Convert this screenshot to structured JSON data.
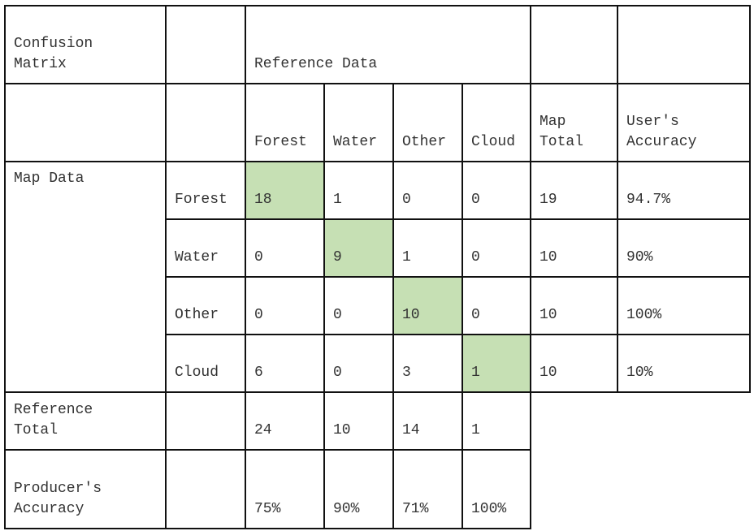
{
  "header": {
    "title": "Confusion\nMatrix",
    "reference_label": "Reference Data",
    "columns": [
      "Forest",
      "Water",
      "Other",
      "Cloud"
    ],
    "map_total_label": "Map\nTotal",
    "users_accuracy_label": "User's\nAccuracy"
  },
  "map_data_label": "Map Data",
  "rows": [
    {
      "label": "Forest",
      "values": [
        "18",
        "1",
        "0",
        "0"
      ],
      "map_total": "19",
      "users_accuracy": "94.7%"
    },
    {
      "label": "Water",
      "values": [
        "0",
        "9",
        "1",
        "0"
      ],
      "map_total": "10",
      "users_accuracy": "90%"
    },
    {
      "label": "Other",
      "values": [
        "0",
        "0",
        "10",
        "0"
      ],
      "map_total": "10",
      "users_accuracy": "100%"
    },
    {
      "label": "Cloud",
      "values": [
        "6",
        "0",
        "3",
        "1"
      ],
      "map_total": "10",
      "users_accuracy": "10%"
    }
  ],
  "reference_total": {
    "label": "Reference\nTotal",
    "values": [
      "24",
      "10",
      "14",
      "1"
    ]
  },
  "producers_accuracy": {
    "label": "Producer's\nAccuracy",
    "values": [
      "75%",
      "90%",
      "71%",
      "100%"
    ]
  },
  "colors": {
    "diagonal_fill": "#c6e0b4",
    "border": "#111111"
  }
}
